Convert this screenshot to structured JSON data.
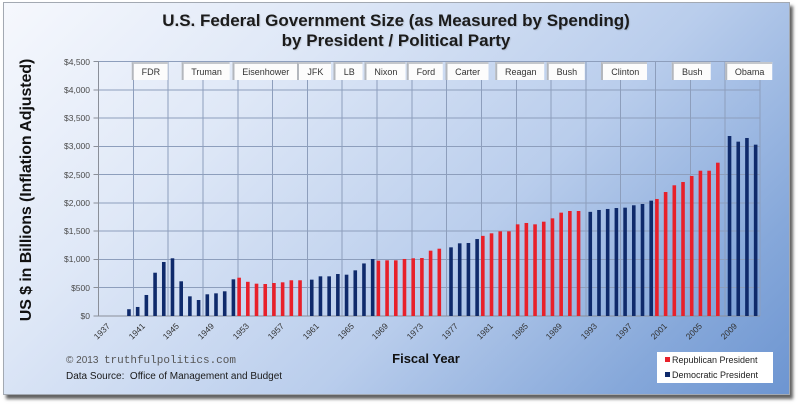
{
  "chart_data": {
    "type": "bar",
    "title": "U.S. Federal Government Size (as Measured by Spending)",
    "subtitle": "by President / Political Party",
    "xlabel": "Fiscal Year",
    "ylabel": "US $ in Billions (Inflation Adjusted)",
    "ylim": [
      0,
      4500
    ],
    "grid": true,
    "legend_position": "bottom-right",
    "categories": [
      1937,
      1938,
      1939,
      1940,
      1941,
      1942,
      1943,
      1944,
      1945,
      1946,
      1947,
      1948,
      1949,
      1950,
      1951,
      1952,
      1953,
      1954,
      1955,
      1956,
      1957,
      1958,
      1959,
      1960,
      1961,
      1962,
      1963,
      1964,
      1965,
      1966,
      1967,
      1968,
      1969,
      1970,
      1971,
      1972,
      1973,
      1974,
      1975,
      1976,
      1977,
      1978,
      1979,
      1980,
      1981,
      1982,
      1983,
      1984,
      1985,
      1986,
      1987,
      1988,
      1989,
      1990,
      1991,
      1992,
      1993,
      1994,
      1995,
      1996,
      1997,
      1998,
      1999,
      2000,
      2001,
      2002,
      2003,
      2004,
      2005,
      2006,
      2007,
      2008,
      2009,
      2010,
      2011,
      2012
    ],
    "x_ticks": [
      "1937",
      "1941",
      "1945",
      "1949",
      "1953",
      "1957",
      "1961",
      "1965",
      "1969",
      "1973",
      "1977",
      "1981",
      "1985",
      "1989",
      "1993",
      "1997",
      "2001",
      "2005",
      "2009"
    ],
    "y_ticks": [
      {
        "value": 0,
        "label": "$0"
      },
      {
        "value": 500,
        "label": "$500"
      },
      {
        "value": 1000,
        "label": "$1,000"
      },
      {
        "value": 1500,
        "label": "$1,500"
      },
      {
        "value": 2000,
        "label": "$2,000"
      },
      {
        "value": 2500,
        "label": "$2,500"
      },
      {
        "value": 3000,
        "label": "$3,000"
      },
      {
        "value": 3500,
        "label": "$3,500"
      },
      {
        "value": 4000,
        "label": "$4,000"
      },
      {
        "value": 4500,
        "label": "$4,500"
      }
    ],
    "series": [
      {
        "name": "Republican President",
        "color": "#e8202a",
        "values": [
          null,
          null,
          null,
          null,
          null,
          null,
          null,
          null,
          null,
          null,
          null,
          null,
          null,
          null,
          null,
          null,
          678,
          605,
          572,
          566,
          584,
          596,
          632,
          632,
          null,
          null,
          null,
          null,
          null,
          null,
          null,
          null,
          979,
          985,
          985,
          1009,
          1021,
          1026,
          1156,
          1191,
          null,
          null,
          null,
          null,
          1418,
          1463,
          1498,
          1498,
          1622,
          1646,
          1622,
          1669,
          1728,
          1829,
          1858,
          1858,
          null,
          null,
          null,
          null,
          null,
          null,
          null,
          null,
          2071,
          2194,
          2313,
          2371,
          2477,
          2571,
          2571,
          2713,
          null,
          null,
          null,
          null
        ]
      },
      {
        "name": "Democratic President",
        "color": "#0f2a6b",
        "values": [
          null,
          null,
          null,
          120,
          160,
          372,
          766,
          956,
          1021,
          614,
          348,
          283,
          384,
          401,
          437,
          649,
          null,
          null,
          null,
          null,
          null,
          null,
          null,
          null,
          643,
          702,
          702,
          743,
          731,
          808,
          930,
          1009,
          null,
          null,
          null,
          null,
          null,
          null,
          null,
          null,
          1215,
          1286,
          1292,
          1362,
          null,
          null,
          null,
          null,
          null,
          null,
          null,
          null,
          null,
          null,
          null,
          null,
          1843,
          1876,
          1894,
          1911,
          1917,
          1959,
          1982,
          2041,
          null,
          null,
          null,
          null,
          null,
          null,
          null,
          null,
          3185,
          3085,
          3150,
          3032
        ]
      }
    ],
    "president_labels": [
      {
        "name": "FDR",
        "anchor_year": 1942.9
      },
      {
        "name": "Truman",
        "anchor_year": 1949.3
      },
      {
        "name": "Eisenhower",
        "anchor_year": 1956.1
      },
      {
        "name": "JFK",
        "anchor_year": 1961.8
      },
      {
        "name": "LB",
        "anchor_year": 1965.7
      },
      {
        "name": "Nixon",
        "anchor_year": 1969.9
      },
      {
        "name": "Ford",
        "anchor_year": 1974.5
      },
      {
        "name": "Carter",
        "anchor_year": 1979.3
      },
      {
        "name": "Reagan",
        "anchor_year": 1985.4
      },
      {
        "name": "Bush",
        "anchor_year": 1990.7
      },
      {
        "name": "Clinton",
        "anchor_year": 1997.4
      },
      {
        "name": "Bush",
        "anchor_year": 2005.1
      },
      {
        "name": "Obama",
        "anchor_year": 2011.7
      }
    ]
  },
  "footer": {
    "copyright": "© 2013  ",
    "site": "truthfulpolitics.com",
    "source": "Data Source:  Office of Management and Budget"
  }
}
